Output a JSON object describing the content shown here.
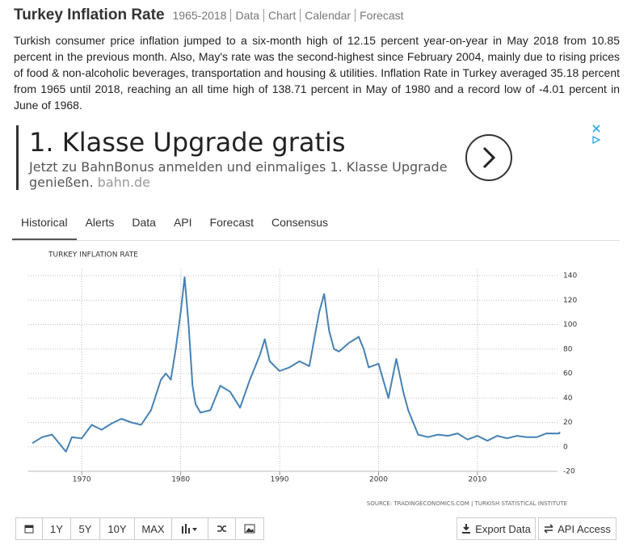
{
  "header": {
    "title": "Turkey Inflation Rate",
    "nav": [
      "1965-2018",
      "Data",
      "Chart",
      "Calendar",
      "Forecast"
    ]
  },
  "summary": "Turkish consumer price inflation jumped to a six-month high of 12.15 percent year-on-year in May 2018 from 10.85 percent in the previous month. Also, May's rate was the second-highest since February 2004, mainly due to rising prices of food & non-alcoholic beverages, transportation and housing & utilities. Inflation Rate in Turkey averaged 35.18 percent from 1965 until 2018, reaching an all time high of 138.71 percent in May of 1980 and a record low of -4.01 percent in June of 1968.",
  "ad": {
    "title": "1. Klasse Upgrade gratis",
    "text": "Jetzt zu BahnBonus anmelden und einmaliges 1. Klasse Upgrade genießen.",
    "domain": "bahn.de"
  },
  "tabs": [
    "Historical",
    "Alerts",
    "Data",
    "API",
    "Forecast",
    "Consensus"
  ],
  "chart_data": {
    "type": "line",
    "title": "TURKEY INFLATION RATE",
    "x": [
      1965,
      1966,
      1967,
      1968.4,
      1969,
      1970,
      1971,
      1972,
      1973,
      1974,
      1975,
      1976,
      1977,
      1978,
      1978.5,
      1979,
      1979.5,
      1980,
      1980.4,
      1980.8,
      1981.2,
      1981.5,
      1982,
      1983,
      1984,
      1985,
      1986,
      1987,
      1988,
      1988.5,
      1989,
      1990,
      1991,
      1992,
      1993,
      1994,
      1994.5,
      1995,
      1995.5,
      1996,
      1997,
      1998,
      1998.5,
      1999,
      2000,
      2001,
      2001.8,
      2002.5,
      2003,
      2004,
      2005,
      2006,
      2007,
      2008,
      2009,
      2010,
      2011,
      2012,
      2013,
      2014,
      2015,
      2016,
      2017,
      2018.25,
      2018.33
    ],
    "series": [
      {
        "name": "Inflation Rate",
        "color": "#4682b4",
        "values": [
          3,
          8,
          10,
          -4.01,
          8,
          7,
          18,
          14,
          19,
          23,
          20,
          18,
          30,
          55,
          60,
          55,
          80,
          110,
          138.71,
          100,
          50,
          35,
          28,
          30,
          50,
          45,
          32,
          55,
          75,
          88,
          70,
          62,
          65,
          70,
          66,
          110,
          125,
          95,
          80,
          78,
          85,
          90,
          80,
          65,
          68,
          40,
          72,
          45,
          30,
          10,
          8,
          10,
          9,
          11,
          6,
          9,
          5,
          9,
          7,
          9,
          8,
          8,
          11,
          10.85,
          12.15
        ]
      }
    ],
    "xlim": [
      1965,
      2018.5
    ],
    "xticks": [
      1970,
      1980,
      1990,
      2000,
      2010
    ],
    "ylim": [
      -20,
      140
    ],
    "yticks": [
      140,
      120,
      100,
      80,
      60,
      40,
      20,
      0,
      -20
    ],
    "grid": true,
    "source": "SOURCE: TRADINGECONOMICS.COM | TURKISH STATISTICAL INSTITUTE"
  },
  "toolbar": {
    "ranges": [
      "1Y",
      "5Y",
      "10Y",
      "MAX"
    ],
    "export": "Export Data",
    "api": "API Access"
  }
}
